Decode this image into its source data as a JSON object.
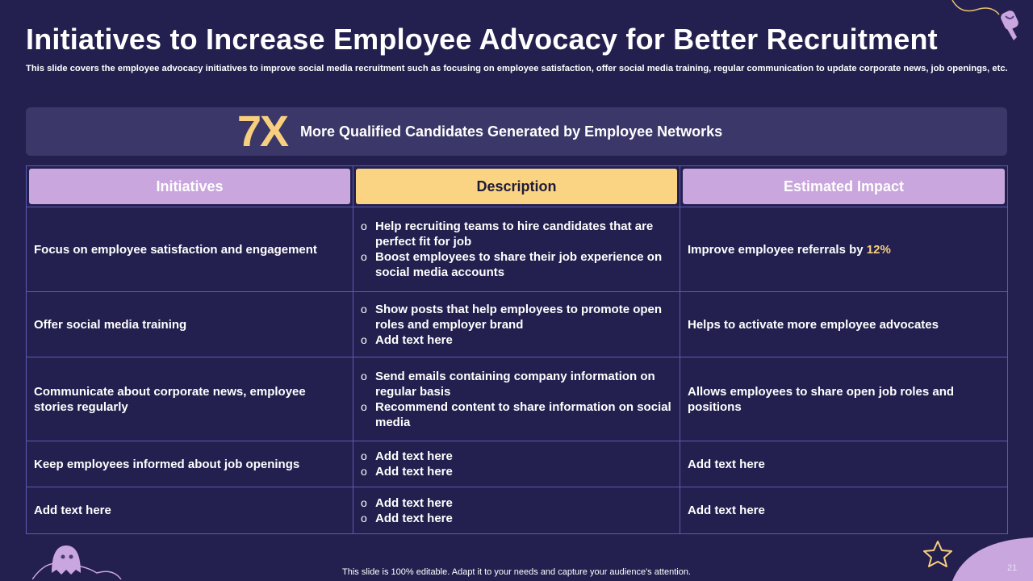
{
  "title": "Initiatives to Increase Employee Advocacy for Better Recruitment",
  "subtitle": "This slide covers the employee advocacy initiatives to improve social media recruitment such as focusing on employee satisfaction, offer social media training, regular communication to update corporate news, job openings, etc.",
  "banner": {
    "number": "7X",
    "text": "More Qualified Candidates Generated by Employee Networks"
  },
  "table": {
    "headers": [
      "Initiatives",
      "Description",
      "Estimated Impact"
    ],
    "rows": [
      {
        "initiative": "Focus on employee satisfaction and engagement",
        "description": [
          "Help recruiting teams to hire candidates that are perfect fit for job",
          "Boost employees to share their job experience on social media accounts"
        ],
        "impact_prefix": "Improve employee referrals by ",
        "impact_highlight": "12%"
      },
      {
        "initiative": "Offer social media training",
        "description": [
          "Show posts that help employees to promote open roles and employer brand",
          "Add text here"
        ],
        "impact": "Helps to activate more employee advocates"
      },
      {
        "initiative": "Communicate about corporate news, employee stories regularly",
        "description": [
          "Send emails containing company information on regular basis",
          "Recommend content to share information on social media"
        ],
        "impact": "Allows employees to share open job roles and positions"
      },
      {
        "initiative": "Keep employees informed about job openings",
        "description": [
          "Add text here",
          "Add text here"
        ],
        "impact": "Add text here"
      },
      {
        "initiative": "Add text here",
        "description": [
          "Add text here",
          "Add text here"
        ],
        "impact": "Add text here"
      }
    ]
  },
  "footer": "This slide is 100% editable. Adapt it to your needs and capture your audience's attention.",
  "page_number": "21",
  "colors": {
    "background": "#23204f",
    "banner": "#3b3869",
    "accent_yellow": "#f7cf7e",
    "header_purple": "#c9a6dd",
    "header_yellow": "#fad482",
    "grid_line": "#5d5ab3"
  },
  "decorations": [
    "ghost-icon",
    "star-icon",
    "candy-icon",
    "cloud-doodle"
  ]
}
